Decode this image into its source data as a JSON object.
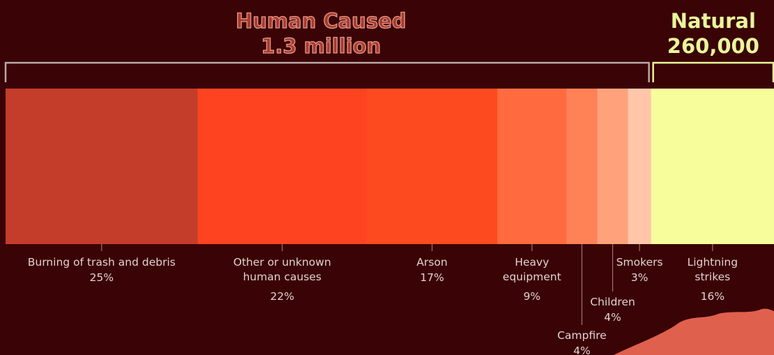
{
  "chart_data": {
    "type": "bar",
    "stacked": true,
    "orientation": "horizontal",
    "categories": [
      "Burning of trash and debris",
      "Other or unknown human causes",
      "Arson",
      "Heavy equipment",
      "Campfire",
      "Children",
      "Smokers",
      "Lightning strikes"
    ],
    "values": [
      25,
      22,
      17,
      9,
      4,
      4,
      3,
      16
    ],
    "value_labels": [
      "25%",
      "22%",
      "17%",
      "9%",
      "4%",
      "4%",
      "3%",
      "16%"
    ],
    "colors": [
      "#c43d2b",
      "#fe4321",
      "#fe4a1f",
      "#ff6b3f",
      "#ff8257",
      "#ffa27c",
      "#ffc6aa",
      "#f8fd9c"
    ],
    "groups": [
      {
        "name": "Human Caused",
        "total": "1.3 million",
        "color": "#e2998a",
        "categories": [
          "Burning of trash and debris",
          "Other or unknown human causes",
          "Arson",
          "Heavy equipment",
          "Campfire",
          "Children",
          "Smokers"
        ]
      },
      {
        "name": "Natural",
        "total": "260,000",
        "color": "#e9f59b",
        "categories": [
          "Lightning strikes"
        ]
      }
    ]
  }
}
